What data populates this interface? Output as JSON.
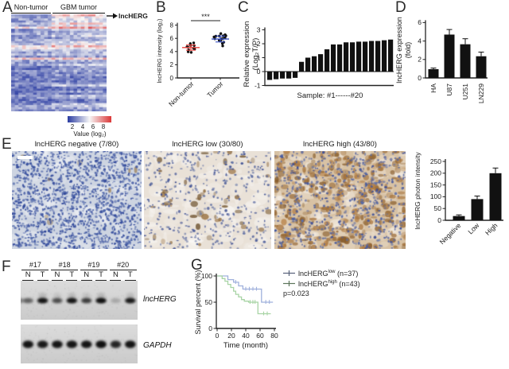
{
  "panels": {
    "a": {
      "letter": "A",
      "groups": [
        "Non-tumor",
        "GBM tumor"
      ]
    },
    "b": {
      "letter": "B"
    },
    "c": {
      "letter": "C"
    },
    "d": {
      "letter": "D"
    },
    "e": {
      "letter": "E",
      "images": [
        {
          "title": "lncHERG negative (7/80)",
          "bg": "#cdd4e1",
          "nucleus": "#3b53a0",
          "stain": "#8a6a3a",
          "nuclei": 1500,
          "stains": 8
        },
        {
          "title": "lncHERG low (30/80)",
          "bg": "#e9e1d7",
          "nucleus": "#50619c",
          "stain": "#7d5a2e",
          "nuclei": 420,
          "stains": 50
        },
        {
          "title": "lncHERG high (43/80)",
          "bg": "#d8c2a4",
          "nucleus": "#4a5da0",
          "stain": "#9c6b35",
          "nuclei": 650,
          "stains": 380
        }
      ]
    },
    "f": {
      "letter": "F"
    },
    "g": {
      "letter": "G"
    }
  },
  "chart_data": [
    {
      "id": "heatmap",
      "type": "heatmap",
      "rows": 47,
      "cols": 26,
      "group_split_col": 11,
      "groups": [
        "Non-tumor",
        "GBM tumor"
      ],
      "row_label": "lncHERG",
      "color_low": "#2e3fa3",
      "color_mid": "#f7f7f7",
      "color_high": "#dc3b3b",
      "value_ticks": [
        "2",
        "4",
        "6",
        "8"
      ],
      "value_label": "Value (log₂)"
    },
    {
      "id": "intensity",
      "type": "scatter-dot",
      "ylabel": "lncHERG intensity (log₂)",
      "ylim": [
        0,
        8
      ],
      "yticks": [
        0,
        2,
        4,
        6,
        8
      ],
      "significance": "***",
      "groups": [
        {
          "label": "Non-tumor",
          "color": "#e8413c",
          "mean": 4.6,
          "sd": 0.4,
          "values": [
            5.2,
            5.1,
            4.9,
            4.85,
            4.7,
            4.6,
            4.5,
            4.45,
            4.3,
            4.0,
            3.95
          ]
        },
        {
          "label": "Tumor",
          "color": "#3a53c5",
          "mean": 5.9,
          "sd": 0.45,
          "values": [
            6.6,
            6.5,
            6.45,
            6.4,
            6.3,
            6.25,
            6.2,
            6.1,
            6.0,
            5.95,
            5.9,
            5.8,
            5.7,
            5.6,
            5.5,
            5.2,
            4.9
          ]
        }
      ]
    },
    {
      "id": "relative-expression",
      "type": "bar",
      "ylabel_lines": [
        "Relative expression",
        "(Log₂T/P)"
      ],
      "ylim": [
        -1,
        3
      ],
      "yticks": [
        -1,
        0,
        1,
        2,
        3
      ],
      "xlabel": "Sample: #1------#20",
      "bar_color": "#111111",
      "values": [
        -0.6,
        -0.55,
        -0.5,
        -0.5,
        -0.45,
        0.7,
        1.0,
        1.1,
        1.25,
        1.6,
        1.95,
        1.95,
        2.1,
        2.1,
        2.15,
        2.15,
        2.2,
        2.2,
        2.25,
        2.3
      ]
    },
    {
      "id": "cell-line-expression",
      "type": "bar-err",
      "ylabel_lines": [
        "lncHERG expression",
        "(fold)"
      ],
      "ylim": [
        0,
        6
      ],
      "yticks": [
        0,
        2,
        4,
        6
      ],
      "categories": [
        "HA",
        "U87",
        "U251",
        "LN229"
      ],
      "values": [
        0.95,
        4.7,
        3.65,
        2.35
      ],
      "errors": [
        0.12,
        0.55,
        0.6,
        0.45
      ],
      "bar_color": "#111111"
    },
    {
      "id": "photon-intensity",
      "type": "bar-err",
      "ylabel_lines": [
        "lncHERG photon intensity"
      ],
      "ylim": [
        0,
        250
      ],
      "yticks": [
        0,
        50,
        100,
        150,
        200,
        250
      ],
      "categories": [
        "Negative",
        "Low",
        "High"
      ],
      "values": [
        18,
        90,
        200
      ],
      "errors": [
        5,
        13,
        22
      ],
      "bar_color": "#111111"
    },
    {
      "id": "survival",
      "type": "km",
      "ylabel": "Survival percent (%)",
      "xlabel": "Time (month)",
      "xticks": [
        0,
        20,
        40,
        60,
        80
      ],
      "yticks": [
        0,
        50,
        100
      ],
      "p_label": "p=0.023",
      "series": [
        {
          "name": "lncHERG",
          "sup": "low",
          "n_label": "(n=37)",
          "color": "#9fb0dc",
          "steps": [
            [
              0,
              100
            ],
            [
              15,
              100
            ],
            [
              15,
              93
            ],
            [
              23,
              93
            ],
            [
              23,
              88
            ],
            [
              30,
              88
            ],
            [
              30,
              81
            ],
            [
              36,
              81
            ],
            [
              36,
              75
            ],
            [
              62,
              75
            ],
            [
              62,
              50
            ],
            [
              78,
              50
            ]
          ],
          "censors": [
            [
              26,
              88
            ],
            [
              40,
              75
            ],
            [
              45,
              75
            ],
            [
              50,
              75
            ],
            [
              55,
              75
            ],
            [
              68,
              50
            ],
            [
              73,
              50
            ]
          ]
        },
        {
          "name": "lncHERG",
          "sup": "high",
          "n_label": "(n=43)",
          "color": "#a8d4a5",
          "steps": [
            [
              0,
              100
            ],
            [
              7,
              100
            ],
            [
              7,
              95
            ],
            [
              11,
              95
            ],
            [
              11,
              90
            ],
            [
              15,
              90
            ],
            [
              15,
              84
            ],
            [
              19,
              84
            ],
            [
              19,
              78
            ],
            [
              23,
              78
            ],
            [
              23,
              71
            ],
            [
              26,
              71
            ],
            [
              26,
              65
            ],
            [
              30,
              65
            ],
            [
              30,
              60
            ],
            [
              34,
              60
            ],
            [
              34,
              55
            ],
            [
              38,
              55
            ],
            [
              38,
              52
            ],
            [
              44,
              52
            ],
            [
              44,
              50
            ],
            [
              57,
              50
            ],
            [
              57,
              28
            ],
            [
              75,
              28
            ]
          ],
          "censors": [
            [
              46,
              50
            ],
            [
              50,
              50
            ],
            [
              53,
              50
            ],
            [
              65,
              28
            ],
            [
              70,
              28
            ]
          ]
        }
      ]
    },
    {
      "id": "gels",
      "type": "gel",
      "samples": [
        "#17",
        "#18",
        "#19",
        "#20"
      ],
      "lanes": [
        "N",
        "T"
      ],
      "rows": [
        {
          "label": "lncHERG",
          "band_intensities": [
            0.45,
            0.95,
            0.55,
            0.95,
            0.65,
            1.0,
            0.15,
            0.9
          ]
        },
        {
          "label": "GAPDH",
          "band_intensities": [
            0.95,
            0.9,
            0.95,
            0.95,
            0.95,
            1.0,
            0.8,
            0.95
          ]
        }
      ]
    }
  ]
}
